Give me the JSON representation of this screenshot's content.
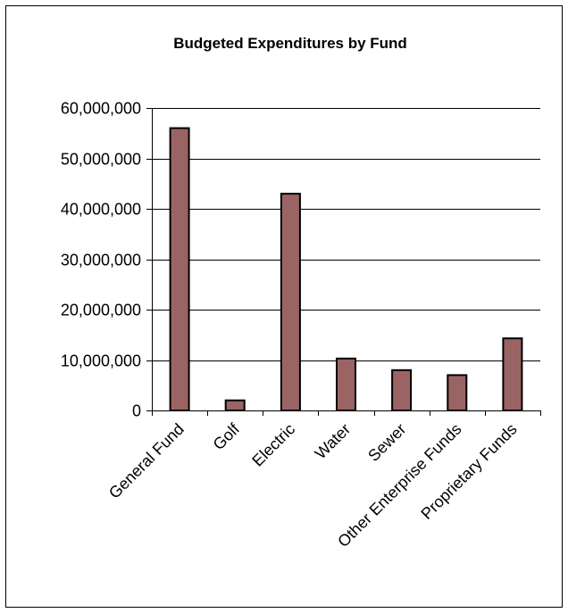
{
  "chart_data": {
    "type": "bar",
    "title": "Budgeted Expenditures by Fund",
    "xlabel": "",
    "ylabel": "",
    "categories": [
      "General Fund",
      "Golf",
      "Electric",
      "Water",
      "Sewer",
      "Other Enterprise Funds",
      "Proprietary Funds"
    ],
    "values": [
      56000000,
      2000000,
      43000000,
      10300000,
      8000000,
      7000000,
      14300000
    ],
    "ylim": [
      0,
      60000000
    ],
    "yticks": [
      "0",
      "10,000,000",
      "20,000,000",
      "30,000,000",
      "40,000,000",
      "50,000,000",
      "60,000,000"
    ],
    "grid": true,
    "legend": "none",
    "colors": {
      "bar_fill": "#9b6464",
      "bar_stroke": "#000000",
      "grid": "#000000"
    }
  }
}
